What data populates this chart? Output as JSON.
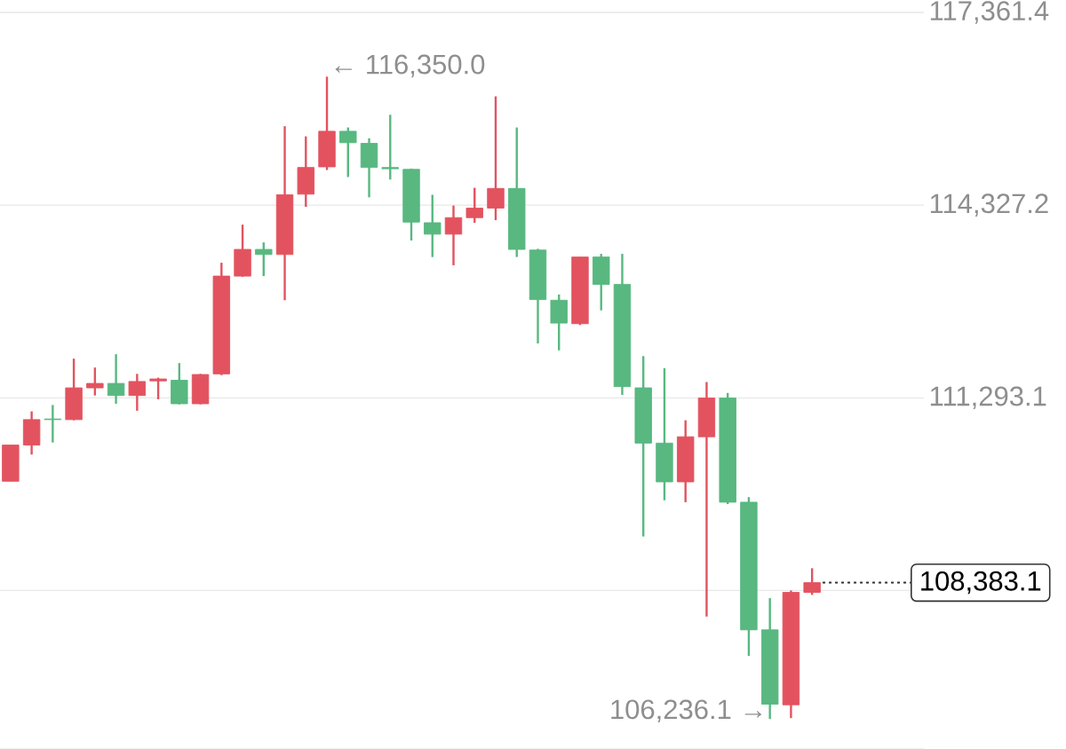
{
  "chart_data": {
    "type": "candlestick",
    "categories": [
      null,
      null,
      null,
      null,
      null,
      null,
      null,
      null,
      null,
      null,
      null,
      null,
      null,
      null,
      null,
      null,
      null,
      null,
      null,
      null,
      null,
      null,
      null,
      null,
      null,
      null,
      null,
      null,
      null,
      null,
      null,
      null,
      null,
      null,
      null,
      null,
      null,
      null,
      null
    ],
    "ohlc": [
      [
        109980,
        110550,
        109980,
        110550
      ],
      [
        110550,
        111080,
        110400,
        110950
      ],
      [
        110960,
        111180,
        110590,
        110950
      ],
      [
        110950,
        111910,
        110940,
        111450
      ],
      [
        111450,
        111770,
        111330,
        111520
      ],
      [
        111520,
        111980,
        111200,
        111330
      ],
      [
        111330,
        111670,
        111090,
        111550
      ],
      [
        111560,
        111610,
        111270,
        111590
      ],
      [
        111570,
        111840,
        111190,
        111200
      ],
      [
        111200,
        111670,
        111190,
        111660
      ],
      [
        111670,
        113420,
        111650,
        113210
      ],
      [
        113210,
        114020,
        113200,
        113630
      ],
      [
        113630,
        113740,
        113210,
        113550
      ],
      [
        113550,
        115570,
        112830,
        114490
      ],
      [
        114500,
        115410,
        114300,
        114920
      ],
      [
        114930,
        116350.0,
        114880,
        115490
      ],
      [
        115490,
        115550,
        114770,
        115310
      ],
      [
        115300,
        115380,
        114450,
        114920
      ],
      [
        114920,
        115750,
        114730,
        114900
      ],
      [
        114890,
        114900,
        113770,
        114060
      ],
      [
        114050,
        114490,
        113510,
        113870
      ],
      [
        113870,
        114320,
        113380,
        114130
      ],
      [
        114130,
        114600,
        114050,
        114280
      ],
      [
        114280,
        116040,
        114090,
        114590
      ],
      [
        114590,
        115550,
        113510,
        113630
      ],
      [
        113620,
        113640,
        112150,
        112840
      ],
      [
        112830,
        112920,
        112040,
        112470
      ],
      [
        112460,
        113510,
        112440,
        113510
      ],
      [
        113510,
        113560,
        112670,
        113080
      ],
      [
        113080,
        113560,
        111340,
        111470
      ],
      [
        111450,
        111950,
        109110,
        110580
      ],
      [
        110580,
        111760,
        109680,
        109970
      ],
      [
        109970,
        110940,
        109650,
        110680
      ],
      [
        110680,
        111540,
        107850,
        111290
      ],
      [
        111290,
        111370,
        109620,
        109650
      ],
      [
        109650,
        109730,
        107230,
        107640
      ],
      [
        107640,
        108140,
        106236.1,
        106470
      ],
      [
        106460,
        108260,
        106250,
        108230
      ],
      [
        108230,
        108610,
        108190,
        108383.1
      ]
    ],
    "colors": [
      "#e2535f",
      "#e2535f",
      "#58b880",
      "#e2535f",
      "#e2535f",
      "#58b880",
      "#e2535f",
      "#e2535f",
      "#58b880",
      "#e2535f",
      "#e2535f",
      "#e2535f",
      "#58b880",
      "#e2535f",
      "#e2535f",
      "#e2535f",
      "#58b880",
      "#58b880",
      "#58b880",
      "#58b880",
      "#58b880",
      "#e2535f",
      "#e2535f",
      "#e2535f",
      "#58b880",
      "#58b880",
      "#58b880",
      "#e2535f",
      "#58b880",
      "#58b880",
      "#58b880",
      "#58b880",
      "#e2535f",
      "#e2535f",
      "#58b880",
      "#58b880",
      "#58b880",
      "#e2535f",
      "#e2535f"
    ],
    "ylim": [
      105764,
      117361.4
    ],
    "yticks": [
      {
        "value": 108259.0,
        "label": null
      },
      {
        "value": 111293.1,
        "label": "111,293.1"
      },
      {
        "value": 114327.2,
        "label": "114,327.2"
      },
      {
        "value": 117361.4,
        "label": "117,361.4"
      }
    ],
    "grid": "y",
    "tick_labels": "y",
    "annotations": [
      "← 116,350.0",
      "106,236.1 →"
    ],
    "ref_lines": [
      {
        "axis": "y",
        "value": 108383.1,
        "label": "108,383.1",
        "color": "#333333",
        "line_style": "dotted"
      }
    ]
  }
}
